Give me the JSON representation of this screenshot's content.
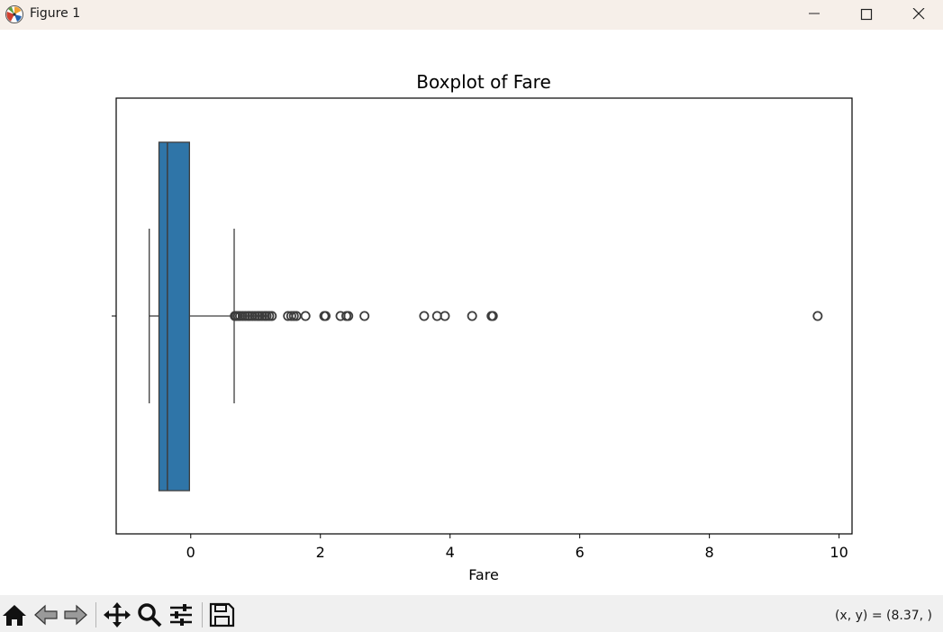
{
  "window": {
    "title": "Figure 1",
    "icons": {
      "app": "matplotlib-logo-icon",
      "minimize": "minimize-icon",
      "maximize": "maximize-icon",
      "close": "close-icon"
    }
  },
  "toolbar": {
    "buttons": [
      {
        "name": "home-button",
        "icon": "home-icon"
      },
      {
        "name": "back-button",
        "icon": "back-arrow-icon"
      },
      {
        "name": "forward-button",
        "icon": "forward-arrow-icon"
      },
      {
        "name": "pan-button",
        "icon": "move-icon"
      },
      {
        "name": "zoom-button",
        "icon": "magnifier-icon"
      },
      {
        "name": "configure-subplots-button",
        "icon": "sliders-icon"
      },
      {
        "name": "save-button",
        "icon": "floppy-disk-icon"
      }
    ],
    "coords": "(x, y) = (8.37, )"
  },
  "chart_data": {
    "type": "box",
    "title": "Boxplot of Fare",
    "xlabel": "Fare",
    "ylabel": "",
    "xlim": [
      -1.15,
      10.2
    ],
    "xticks": [
      0,
      2,
      4,
      6,
      8,
      10
    ],
    "xtick_labels": [
      "0",
      "2",
      "4",
      "6",
      "8",
      "10"
    ],
    "orientation": "horizontal",
    "grid": false,
    "box": {
      "whisker_low": -0.64,
      "q1": -0.49,
      "median": -0.36,
      "q3": -0.02,
      "whisker_high": 0.67
    },
    "outliers": [
      0.68,
      0.7,
      0.73,
      0.76,
      0.8,
      0.84,
      0.88,
      0.91,
      0.95,
      0.99,
      1.03,
      1.06,
      1.1,
      1.14,
      1.17,
      1.21,
      1.25,
      1.5,
      1.55,
      1.59,
      1.63,
      1.77,
      2.06,
      2.08,
      2.31,
      2.4,
      2.43,
      2.68,
      3.6,
      3.8,
      3.92,
      4.34,
      4.64,
      4.66,
      9.67
    ],
    "colors": {
      "box_fill": "#2f75a8",
      "line": "#3d3d3d",
      "flier_edge": "#3d3d3d"
    }
  }
}
